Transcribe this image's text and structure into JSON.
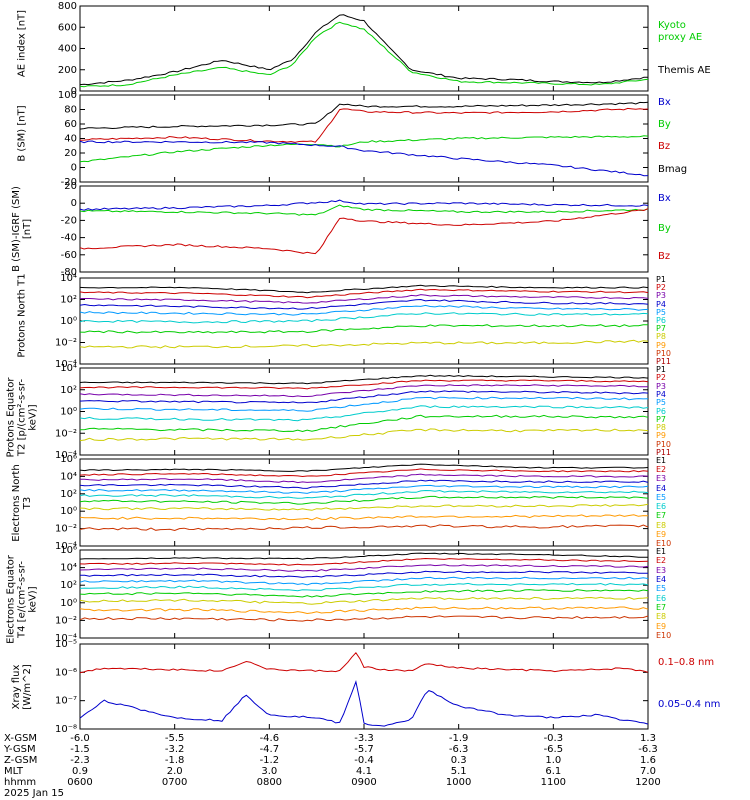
{
  "colors": {
    "black": "#000000",
    "green": "#00cc00",
    "red": "#cc0000",
    "blue": "#0000cc",
    "ch": [
      "#000000",
      "#cc0000",
      "#7700aa",
      "#0000cc",
      "#0099ff",
      "#00cccc",
      "#00cc00",
      "#cccc00",
      "#ff9900",
      "#cc3300",
      "#aa0000"
    ]
  },
  "footer": {
    "row_labels": [
      "X-GSM",
      "Y-GSM",
      "Z-GSM",
      "MLT",
      "hhmm",
      "2025 Jan 15"
    ],
    "columns": [
      {
        "x": "-6.0",
        "y": "-1.5",
        "z": "-2.3",
        "mlt": "0.9",
        "hhmm": "0600"
      },
      {
        "x": "-5.5",
        "y": "-3.2",
        "z": "-1.8",
        "mlt": "2.0",
        "hhmm": "0700"
      },
      {
        "x": "-4.6",
        "y": "-4.7",
        "z": "-1.2",
        "mlt": "3.0",
        "hhmm": "0800"
      },
      {
        "x": "-3.3",
        "y": "-5.7",
        "z": "-0.4",
        "mlt": "4.1",
        "hhmm": "0900"
      },
      {
        "x": "-1.9",
        "y": "-6.3",
        "z": "0.3",
        "mlt": "5.1",
        "hhmm": "1000"
      },
      {
        "x": "-0.3",
        "y": "-6.5",
        "z": "1.0",
        "mlt": "6.1",
        "hhmm": "1100"
      },
      {
        "x": "1.3",
        "y": "-6.3",
        "z": "1.6",
        "mlt": "7.0",
        "hhmm": "1200"
      }
    ]
  },
  "chart_data": [
    {
      "type": "line",
      "id": "ae",
      "ylabel": "AE index [nT]",
      "ylim": [
        0,
        800
      ],
      "yticks": [
        "0",
        "200",
        "400",
        "600",
        "800"
      ],
      "scale": "linear",
      "legend": [
        {
          "text": "Kyoto",
          "color": "green"
        },
        {
          "text": "proxy AE",
          "color": "green"
        },
        {
          "text": "Themis AE",
          "color": "black"
        }
      ],
      "x": [
        "06:00",
        "06:30",
        "07:00",
        "07:30",
        "08:00",
        "08:15",
        "08:30",
        "08:45",
        "09:00",
        "09:15",
        "09:30",
        "10:00",
        "10:30",
        "11:00",
        "11:30",
        "12:00"
      ],
      "series": [
        {
          "name": "Themis AE",
          "color": "black",
          "values": [
            60,
            100,
            180,
            290,
            200,
            300,
            560,
            720,
            660,
            420,
            200,
            120,
            110,
            90,
            80,
            130
          ]
        },
        {
          "name": "Kyoto proxy AE",
          "color": "green",
          "values": [
            40,
            60,
            150,
            220,
            150,
            250,
            520,
            650,
            580,
            380,
            180,
            90,
            80,
            70,
            60,
            110
          ]
        }
      ]
    },
    {
      "type": "line",
      "id": "bsm",
      "ylabel": "B (SM) [nT]",
      "ylim": [
        -25,
        105
      ],
      "yticks": [
        "-20",
        "0",
        "20",
        "40",
        "60",
        "80",
        "100"
      ],
      "scale": "linear",
      "legend": [
        {
          "text": "Bx",
          "color": "blue"
        },
        {
          "text": "By",
          "color": "green"
        },
        {
          "text": "Bz",
          "color": "red"
        },
        {
          "text": "Bmag",
          "color": "black"
        }
      ],
      "x": [
        "06:00",
        "07:00",
        "08:00",
        "08:30",
        "08:45",
        "09:00",
        "10:00",
        "11:00",
        "12:00"
      ],
      "series": [
        {
          "name": "Bmag",
          "color": "black",
          "values": [
            55,
            58,
            60,
            62,
            92,
            88,
            88,
            90,
            93
          ]
        },
        {
          "name": "Bz",
          "color": "red",
          "values": [
            38,
            42,
            36,
            35,
            85,
            80,
            78,
            80,
            85
          ]
        },
        {
          "name": "By",
          "color": "green",
          "values": [
            5,
            20,
            30,
            32,
            28,
            35,
            40,
            42,
            43
          ]
        },
        {
          "name": "Bx",
          "color": "blue",
          "values": [
            35,
            35,
            34,
            30,
            28,
            22,
            10,
            0,
            -15
          ]
        }
      ]
    },
    {
      "type": "line",
      "id": "bigrf",
      "ylabel": "B (SM)-IGRF (SM) [nT]",
      "ylim": [
        -85,
        25
      ],
      "yticks": [
        "-80",
        "-60",
        "-40",
        "-20",
        "0",
        "20"
      ],
      "scale": "linear",
      "legend": [
        {
          "text": "Bx",
          "color": "blue"
        },
        {
          "text": "By",
          "color": "green"
        },
        {
          "text": "Bz",
          "color": "red"
        }
      ],
      "x": [
        "06:00",
        "07:00",
        "08:00",
        "08:30",
        "08:45",
        "09:00",
        "10:00",
        "11:00",
        "12:00"
      ],
      "series": [
        {
          "name": "Bx",
          "color": "blue",
          "values": [
            -5,
            -3,
            0,
            4,
            6,
            2,
            3,
            1,
            0
          ]
        },
        {
          "name": "By",
          "color": "green",
          "values": [
            -7,
            -8,
            -10,
            -12,
            0,
            -5,
            -8,
            -8,
            -5
          ]
        },
        {
          "name": "Bz",
          "color": "red",
          "values": [
            -55,
            -50,
            -55,
            -62,
            -15,
            -20,
            -25,
            -20,
            -5
          ]
        }
      ]
    },
    {
      "type": "line",
      "id": "pn",
      "scale": "log",
      "ylabel": "Protons North T1",
      "ylim": [
        -5,
        4
      ],
      "yticks": [
        "10⁻⁴",
        "10⁻²",
        "10⁰",
        "10²",
        "10⁴"
      ],
      "legend": [
        "P1",
        "P2",
        "P3",
        "P4",
        "P5",
        "P6",
        "P7",
        "P8",
        "P9",
        "P10",
        "P11"
      ],
      "series": [
        {
          "name": "P1",
          "values": [
            3.0,
            3.0,
            2.5,
            3.2,
            3.0,
            3.0
          ]
        },
        {
          "name": "P2",
          "values": [
            2.5,
            2.4,
            2.0,
            2.8,
            2.6,
            2.5
          ]
        },
        {
          "name": "P3",
          "values": [
            1.8,
            1.7,
            1.4,
            2.2,
            2.0,
            1.9
          ]
        },
        {
          "name": "P4",
          "values": [
            1.2,
            1.0,
            0.8,
            1.7,
            1.4,
            1.3
          ]
        },
        {
          "name": "P5",
          "values": [
            0.4,
            0.3,
            0.2,
            1.1,
            0.8,
            0.7
          ]
        },
        {
          "name": "P6",
          "values": [
            -0.5,
            -0.6,
            -0.5,
            0.3,
            0.2,
            0.2
          ]
        },
        {
          "name": "P7",
          "values": [
            -1.6,
            -1.7,
            -1.6,
            -1.0,
            -1.0,
            -1.0
          ]
        },
        {
          "name": "P8",
          "values": [
            -3.2,
            -3.2,
            -3.1,
            -2.8,
            -2.8,
            -2.6
          ]
        }
      ]
    },
    {
      "type": "line",
      "id": "pe",
      "scale": "log",
      "ylabel": "Protons Equator T2 [p/(cm²-s-sr-keV)]",
      "ylim": [
        -5,
        4
      ],
      "yticks": [
        "10⁻⁴",
        "10⁻²",
        "10⁰",
        "10²",
        "10⁴"
      ],
      "legend": [
        "P1",
        "P2",
        "P3",
        "P4",
        "P5",
        "P6",
        "P7",
        "P8",
        "P9",
        "P10",
        "P11"
      ],
      "series": [
        {
          "name": "P1",
          "values": [
            2.5,
            2.5,
            2.4,
            3.2,
            3.1,
            3.0
          ]
        },
        {
          "name": "P2",
          "values": [
            2.0,
            2.0,
            1.9,
            2.7,
            2.7,
            2.6
          ]
        },
        {
          "name": "P3",
          "values": [
            1.3,
            1.2,
            1.1,
            2.2,
            2.2,
            2.1
          ]
        },
        {
          "name": "P4",
          "values": [
            0.6,
            0.5,
            0.4,
            1.6,
            1.5,
            1.4
          ]
        },
        {
          "name": "P5",
          "values": [
            -0.2,
            -0.3,
            -0.4,
            0.9,
            0.9,
            0.8
          ]
        },
        {
          "name": "P6",
          "values": [
            -1.2,
            -1.3,
            -1.4,
            0.0,
            0.0,
            -0.1
          ]
        },
        {
          "name": "P7",
          "values": [
            -2.3,
            -2.4,
            -2.5,
            -1.0,
            -1.0,
            -1.1
          ]
        },
        {
          "name": "P8",
          "values": [
            -3.4,
            -3.3,
            -3.4,
            -2.4,
            -2.5,
            -2.4
          ]
        }
      ]
    },
    {
      "type": "line",
      "id": "en",
      "scale": "log",
      "ylabel": "Electrons North T3",
      "ylim": [
        -4,
        6
      ],
      "yticks": [
        "10⁻⁴",
        "10⁻²",
        "10⁰",
        "10²",
        "10⁴",
        "10⁶"
      ],
      "legend": [
        "E1",
        "E2",
        "E3",
        "E4",
        "E5",
        "E6",
        "E7",
        "E8",
        "E9",
        "E10"
      ],
      "series": [
        {
          "name": "E1",
          "values": [
            4.7,
            4.8,
            4.6,
            5.4,
            5.0,
            5.0
          ]
        },
        {
          "name": "E2",
          "values": [
            4.2,
            4.3,
            4.0,
            4.8,
            4.6,
            4.6
          ]
        },
        {
          "name": "E3",
          "values": [
            3.6,
            3.7,
            3.3,
            4.2,
            4.0,
            4.0
          ]
        },
        {
          "name": "E4",
          "values": [
            3.0,
            3.0,
            2.7,
            3.5,
            3.4,
            3.4
          ]
        },
        {
          "name": "E5",
          "values": [
            2.4,
            2.4,
            2.1,
            2.9,
            2.8,
            2.8
          ]
        },
        {
          "name": "E6",
          "values": [
            1.8,
            1.8,
            1.5,
            2.3,
            2.2,
            2.2
          ]
        },
        {
          "name": "E7",
          "values": [
            1.2,
            1.1,
            0.9,
            1.6,
            1.6,
            1.6
          ]
        },
        {
          "name": "E8",
          "values": [
            0.3,
            0.3,
            0.2,
            0.6,
            0.6,
            0.7
          ]
        },
        {
          "name": "E9",
          "values": [
            -0.8,
            -0.8,
            -0.9,
            -0.6,
            -0.6,
            -0.5
          ]
        },
        {
          "name": "E10",
          "values": [
            -2.0,
            -2.1,
            -1.9,
            -1.7,
            -1.8,
            -1.7
          ]
        }
      ]
    },
    {
      "type": "line",
      "id": "ee",
      "scale": "log",
      "ylabel": "Electrons Equator T4 [e/(cm²-s-sr-keV)]",
      "ylim": [
        -4,
        6
      ],
      "yticks": [
        "10⁻⁴",
        "10⁻²",
        "10⁰",
        "10²",
        "10⁴",
        "10⁶"
      ],
      "legend": [
        "E1",
        "E2",
        "E3",
        "E4",
        "E5",
        "E6",
        "E7",
        "E8",
        "E9",
        "E10"
      ],
      "series": [
        {
          "name": "E1",
          "values": [
            5.0,
            5.1,
            5.0,
            5.6,
            5.5,
            5.2
          ]
        },
        {
          "name": "E2",
          "values": [
            4.4,
            4.5,
            4.3,
            5.0,
            4.9,
            4.7
          ]
        },
        {
          "name": "E3",
          "values": [
            3.8,
            3.9,
            3.6,
            4.3,
            4.2,
            4.1
          ]
        },
        {
          "name": "E4",
          "values": [
            3.1,
            3.2,
            2.9,
            3.5,
            3.5,
            3.4
          ]
        },
        {
          "name": "E5",
          "values": [
            2.4,
            2.5,
            2.1,
            2.8,
            2.8,
            2.8
          ]
        },
        {
          "name": "E6",
          "values": [
            1.7,
            1.8,
            1.4,
            2.1,
            2.1,
            2.1
          ]
        },
        {
          "name": "E7",
          "values": [
            1.0,
            1.1,
            0.7,
            1.3,
            1.4,
            1.4
          ]
        },
        {
          "name": "E8",
          "values": [
            0.2,
            0.3,
            -0.1,
            0.5,
            0.5,
            0.5
          ]
        },
        {
          "name": "E9",
          "values": [
            -0.8,
            -0.8,
            -1.1,
            -0.6,
            -0.6,
            -0.6
          ]
        },
        {
          "name": "E10",
          "values": [
            -1.8,
            -1.8,
            -2.0,
            -1.6,
            -1.7,
            -1.6
          ]
        }
      ]
    },
    {
      "type": "line",
      "id": "xray",
      "scale": "log",
      "ylabel": "Xray flux [W/m^2]",
      "ylim": [
        -8,
        -5
      ],
      "yticks": [
        "10⁻⁸",
        "10⁻⁷",
        "10⁻⁶",
        "10⁻⁵"
      ],
      "legend": [
        {
          "text": "0.1–0.8 nm",
          "color": "red"
        },
        {
          "text": "0.05–0.4 nm",
          "color": "blue"
        }
      ],
      "x": [
        "06:00",
        "06:15",
        "07:00",
        "07:30",
        "07:45",
        "08:00",
        "08:30",
        "08:45",
        "08:55",
        "09:00",
        "09:10",
        "09:30",
        "09:40",
        "10:00",
        "10:30",
        "11:00",
        "11:30",
        "11:45",
        "12:00"
      ],
      "series": [
        {
          "name": "0.1–0.8 nm",
          "color": "red",
          "values": [
            -6.0,
            -5.85,
            -5.9,
            -5.95,
            -5.6,
            -5.9,
            -5.95,
            -5.95,
            -5.3,
            -5.8,
            -5.9,
            -5.95,
            -5.7,
            -5.85,
            -5.9,
            -5.95,
            -5.9,
            -5.85,
            -6.0
          ]
        },
        {
          "name": "0.05–0.4 nm",
          "color": "blue",
          "values": [
            -7.6,
            -7.0,
            -7.6,
            -7.7,
            -6.8,
            -7.5,
            -7.6,
            -7.8,
            -6.3,
            -7.8,
            -7.9,
            -7.7,
            -6.6,
            -7.2,
            -7.5,
            -7.6,
            -7.5,
            -7.7,
            -7.8
          ]
        }
      ]
    }
  ]
}
